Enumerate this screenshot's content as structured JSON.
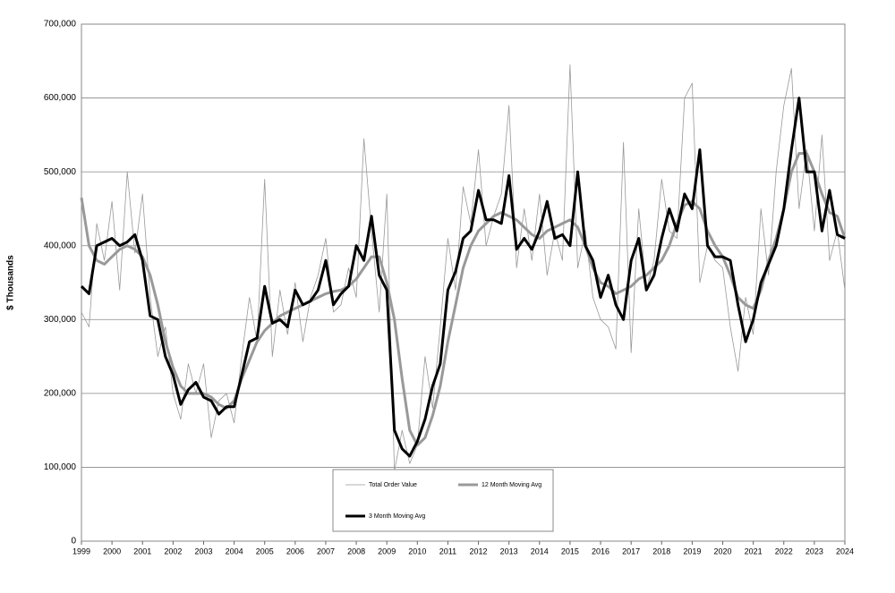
{
  "chart_data": {
    "type": "line",
    "y_label": "$ Thousands",
    "x": [
      1999,
      1999.25,
      1999.5,
      1999.75,
      2000,
      2000.25,
      2000.5,
      2000.75,
      2001,
      2001.25,
      2001.5,
      2001.75,
      2002,
      2002.25,
      2002.5,
      2002.75,
      2003,
      2003.25,
      2003.5,
      2003.75,
      2004,
      2004.25,
      2004.5,
      2004.75,
      2005,
      2005.25,
      2005.5,
      2005.75,
      2006,
      2006.25,
      2006.5,
      2006.75,
      2007,
      2007.25,
      2007.5,
      2007.75,
      2008,
      2008.25,
      2008.5,
      2008.75,
      2009,
      2009.25,
      2009.5,
      2009.75,
      2010,
      2010.25,
      2010.5,
      2010.75,
      2011,
      2011.25,
      2011.5,
      2011.75,
      2012,
      2012.25,
      2012.5,
      2012.75,
      2013,
      2013.25,
      2013.5,
      2013.75,
      2014,
      2014.25,
      2014.5,
      2014.75,
      2015,
      2015.25,
      2015.5,
      2015.75,
      2016,
      2016.25,
      2016.5,
      2016.75,
      2017,
      2017.25,
      2017.5,
      2017.75,
      2018,
      2018.25,
      2018.5,
      2018.75,
      2019,
      2019.25,
      2019.5,
      2019.75,
      2020,
      2020.25,
      2020.5,
      2020.75,
      2021,
      2021.25,
      2021.5,
      2021.75,
      2022,
      2022.25,
      2022.5,
      2022.75,
      2023,
      2023.25,
      2023.5,
      2023.75,
      2024
    ],
    "series": [
      {
        "name": "Total Order Value",
        "color": "#999999",
        "line_width": 0.8,
        "values": [
          310000,
          290000,
          430000,
          380000,
          460000,
          340000,
          500000,
          390000,
          470000,
          330000,
          250000,
          290000,
          200000,
          165000,
          240000,
          200000,
          240000,
          140000,
          190000,
          200000,
          160000,
          250000,
          330000,
          270000,
          490000,
          250000,
          340000,
          280000,
          350000,
          270000,
          330000,
          360000,
          410000,
          310000,
          320000,
          370000,
          330000,
          545000,
          420000,
          310000,
          470000,
          95000,
          150000,
          105000,
          130000,
          250000,
          180000,
          290000,
          410000,
          340000,
          480000,
          430000,
          530000,
          400000,
          440000,
          470000,
          590000,
          370000,
          450000,
          380000,
          470000,
          360000,
          420000,
          380000,
          645000,
          370000,
          420000,
          330000,
          300000,
          290000,
          260000,
          540000,
          255000,
          450000,
          340000,
          380000,
          490000,
          420000,
          410000,
          600000,
          620000,
          350000,
          400000,
          380000,
          370000,
          290000,
          230000,
          330000,
          280000,
          450000,
          360000,
          500000,
          590000,
          640000,
          450000,
          530000,
          420000,
          550000,
          380000,
          420000,
          340000
        ]
      },
      {
        "name": "12 Month Moving Avg",
        "color": "#999999",
        "line_width": 3,
        "values": [
          465000,
          400000,
          380000,
          375000,
          385000,
          395000,
          400000,
          395000,
          385000,
          360000,
          320000,
          270000,
          235000,
          210000,
          200000,
          200000,
          200000,
          195000,
          185000,
          180000,
          190000,
          220000,
          245000,
          270000,
          285000,
          295000,
          305000,
          310000,
          315000,
          320000,
          325000,
          330000,
          335000,
          338000,
          340000,
          345000,
          355000,
          370000,
          385000,
          385000,
          350000,
          300000,
          220000,
          150000,
          130000,
          140000,
          170000,
          210000,
          270000,
          320000,
          370000,
          400000,
          420000,
          430000,
          440000,
          445000,
          440000,
          435000,
          425000,
          415000,
          410000,
          420000,
          425000,
          430000,
          435000,
          425000,
          400000,
          370000,
          350000,
          345000,
          335000,
          340000,
          345000,
          355000,
          360000,
          370000,
          380000,
          400000,
          430000,
          455000,
          460000,
          450000,
          420000,
          400000,
          385000,
          360000,
          330000,
          320000,
          315000,
          340000,
          380000,
          410000,
          450000,
          500000,
          525000,
          525000,
          500000,
          470000,
          445000,
          440000,
          410000
        ]
      },
      {
        "name": "3 Month Moving Avg",
        "color": "#000000",
        "line_width": 3,
        "values": [
          345000,
          335000,
          400000,
          405000,
          410000,
          400000,
          405000,
          415000,
          380000,
          305000,
          300000,
          250000,
          225000,
          185000,
          205000,
          215000,
          195000,
          190000,
          172000,
          182000,
          182000,
          225000,
          270000,
          275000,
          345000,
          295000,
          300000,
          290000,
          340000,
          320000,
          325000,
          340000,
          380000,
          320000,
          335000,
          345000,
          400000,
          380000,
          440000,
          360000,
          340000,
          150000,
          125000,
          115000,
          135000,
          165000,
          210000,
          240000,
          340000,
          365000,
          410000,
          420000,
          475000,
          435000,
          435000,
          430000,
          495000,
          395000,
          410000,
          395000,
          420000,
          460000,
          410000,
          415000,
          400000,
          500000,
          400000,
          380000,
          330000,
          360000,
          320000,
          300000,
          380000,
          410000,
          340000,
          360000,
          410000,
          450000,
          420000,
          470000,
          450000,
          530000,
          400000,
          385000,
          385000,
          380000,
          320000,
          270000,
          300000,
          350000,
          375000,
          400000,
          450000,
          530000,
          600000,
          500000,
          500000,
          420000,
          475000,
          415000,
          410000
        ]
      }
    ],
    "xlim": [
      1999,
      2024
    ],
    "xticks": [
      1999,
      2000,
      2001,
      2002,
      2003,
      2004,
      2005,
      2006,
      2007,
      2008,
      2009,
      2010,
      2011,
      2012,
      2013,
      2014,
      2015,
      2016,
      2017,
      2018,
      2019,
      2020,
      2021,
      2022,
      2023,
      2024
    ],
    "ylim": [
      0,
      700000
    ],
    "yticks": [
      0,
      {
        "value": 100000,
        "label": "100,000"
      },
      {
        "value": 200000,
        "label": "200,000"
      },
      {
        "value": 300000,
        "label": "300,000"
      },
      {
        "value": 400000,
        "label": "400,000"
      },
      {
        "value": 500000,
        "label": "500,000"
      },
      {
        "value": 600000,
        "label": "600,000"
      },
      {
        "value": 700000,
        "label": "700,000"
      }
    ],
    "grid": true
  }
}
